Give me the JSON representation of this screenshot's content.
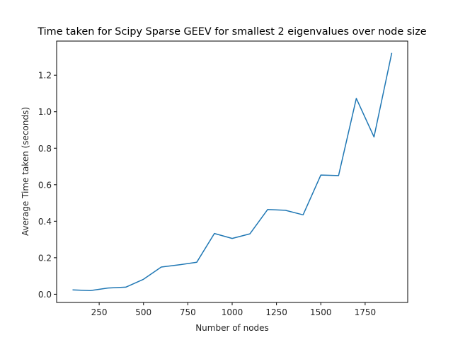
{
  "chart_data": {
    "type": "line",
    "title": "Time taken for Scipy Sparse GEEV for smallest 2 eigenvalues over node size",
    "xlabel": "Number of nodes",
    "ylabel": "Average Time taken (seconds)",
    "x": [
      100,
      200,
      300,
      400,
      500,
      600,
      700,
      800,
      900,
      1000,
      1100,
      1200,
      1300,
      1400,
      1500,
      1600,
      1700,
      1800,
      1900
    ],
    "series": [
      {
        "name": "time",
        "color": "#1f77b4",
        "values": [
          0.024,
          0.02,
          0.034,
          0.039,
          0.082,
          0.149,
          0.161,
          0.175,
          0.333,
          0.306,
          0.331,
          0.464,
          0.46,
          0.435,
          0.653,
          0.65,
          1.073,
          0.862,
          1.322
        ]
      }
    ],
    "xticks": [
      250,
      500,
      750,
      1000,
      1250,
      1500,
      1750
    ],
    "xtick_labels": [
      "250",
      "500",
      "750",
      "1000",
      "1250",
      "1500",
      "1750"
    ],
    "yticks": [
      0.0,
      0.2,
      0.4,
      0.6,
      0.8,
      1.0,
      1.2
    ],
    "ytick_labels": [
      "0.0",
      "0.2",
      "0.4",
      "0.6",
      "0.8",
      "1.0",
      "1.2"
    ],
    "xlim": [
      10,
      1990
    ],
    "ylim": [
      -0.045,
      1.387
    ],
    "grid": false,
    "legend": null
  }
}
